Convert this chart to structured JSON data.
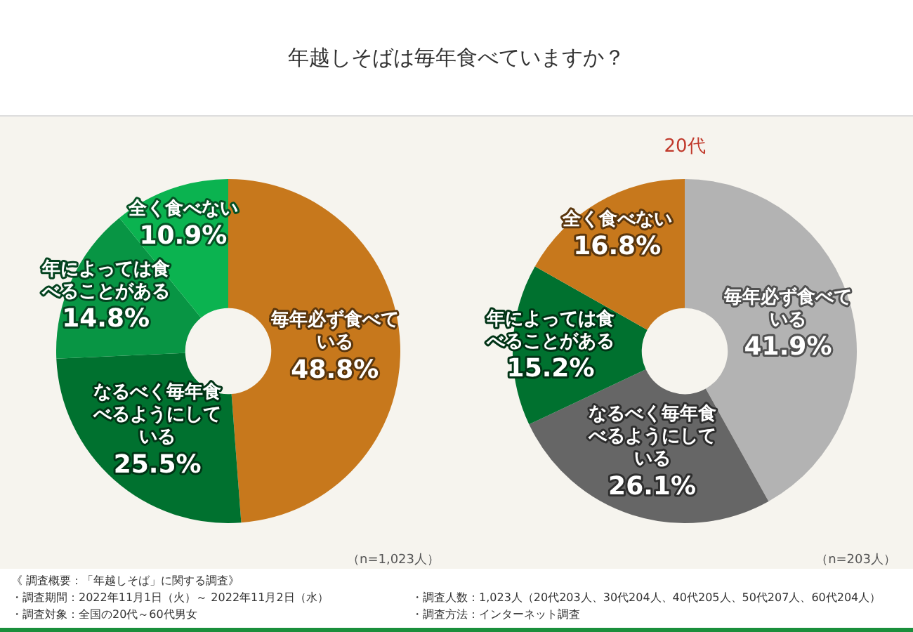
{
  "chart_data": [
    {
      "type": "donut",
      "title": "年越しそばは毎年食べていますか？",
      "categories": [
        "毎年必ず食べている",
        "なるべく毎年食べるようにしている",
        "年によっては食べることがある",
        "全く食べない"
      ],
      "values": [
        48.8,
        25.5,
        14.8,
        10.9
      ],
      "colors": [
        "#c7781c",
        "#00712f",
        "#089544",
        "#0bb350"
      ],
      "value_labels": [
        "48.8%",
        "25.5%",
        "14.8%",
        "10.9%"
      ],
      "legend": false,
      "annotations": [
        "（n=1,023人）",
        "《 調査概要：「年越しそば」に関する調査》",
        "・調査期間：2022年11月1日（火）～ 2022年11月2日（水）",
        "・調査人数：1,023人（20代203人、30代204人、40代205人、50代207人、60代204人）",
        "・調査対象：全国の20代～60代男女",
        "・調査方法：インターネット調査"
      ]
    },
    {
      "type": "donut",
      "title": "20代",
      "categories": [
        "毎年必ず食べている",
        "なるべく毎年食べるようにしている",
        "年によっては食べることがある",
        "全く食べない"
      ],
      "values": [
        41.9,
        26.1,
        15.2,
        16.8
      ],
      "colors": [
        "#b3b3b3",
        "#666666",
        "#00712f",
        "#c7781c"
      ],
      "value_labels": [
        "41.9%",
        "26.1%",
        "15.2%",
        "16.8%"
      ],
      "legend": false,
      "annotations": [
        "（n=203人）"
      ]
    }
  ]
}
